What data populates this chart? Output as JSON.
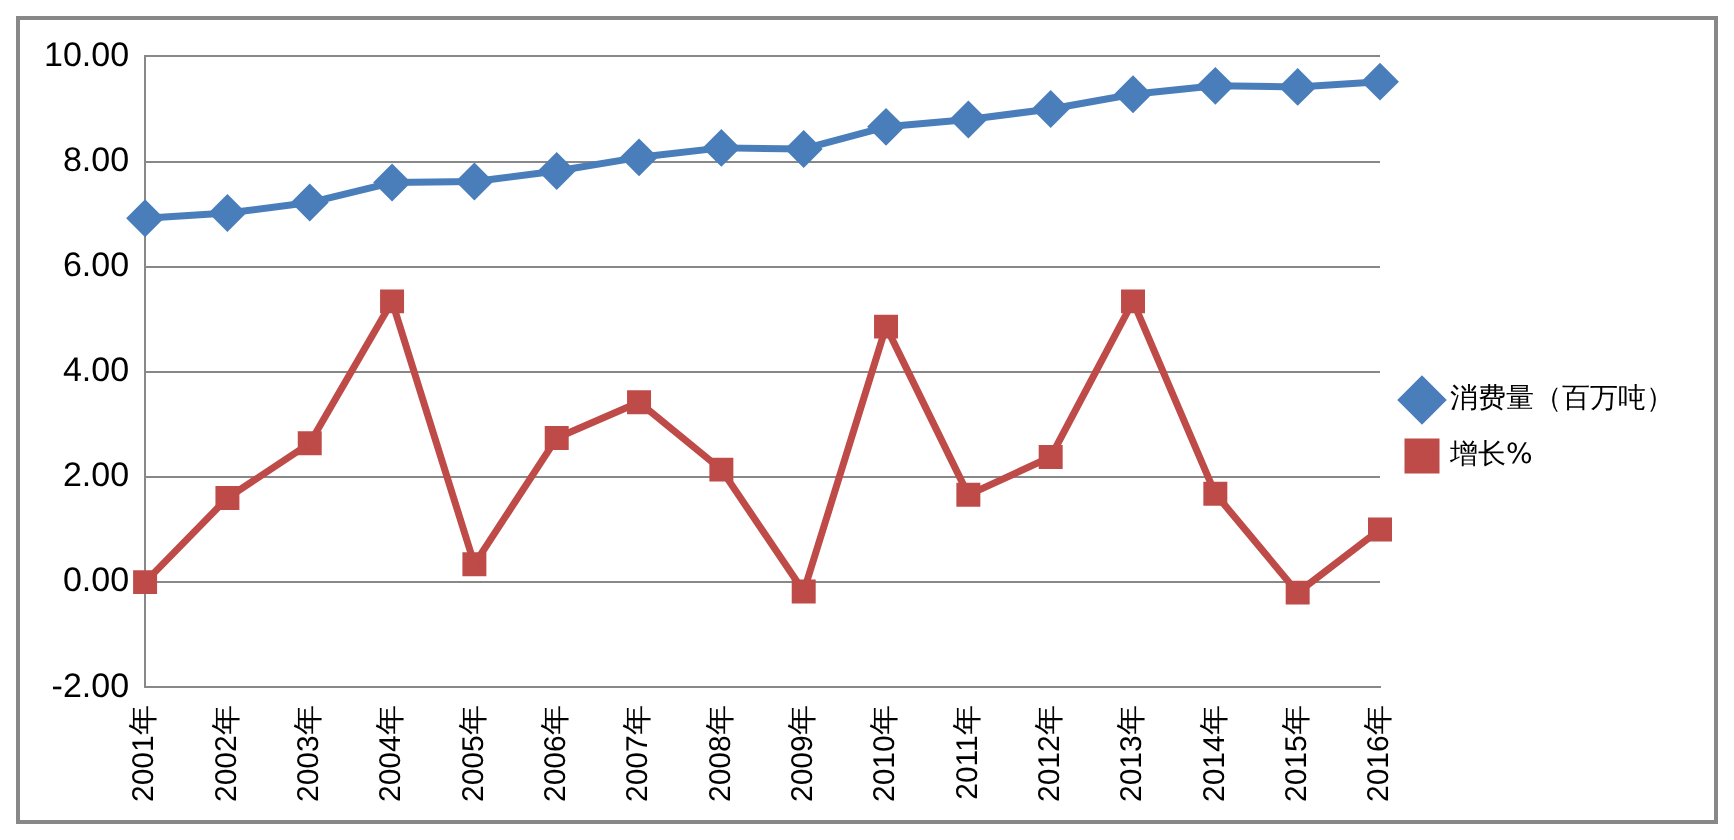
{
  "chart_data": {
    "type": "line",
    "categories": [
      "2001年",
      "2002年",
      "2003年",
      "2004年",
      "2005年",
      "2006年",
      "2007年",
      "2008年",
      "2009年",
      "2010年",
      "2011年",
      "2012年",
      "2013年",
      "2014年",
      "2015年",
      "2016年"
    ],
    "series": [
      {
        "name": "消费量（百万吨）",
        "color": "#4a7ebb",
        "marker": "diamond",
        "values": [
          6.92,
          7.02,
          7.22,
          7.6,
          7.62,
          7.82,
          8.08,
          8.26,
          8.24,
          8.66,
          8.8,
          9.0,
          9.28,
          9.44,
          9.42,
          9.52
        ]
      },
      {
        "name": "增长%",
        "color": "#be4b48",
        "marker": "square",
        "values": [
          0,
          1.6,
          2.64,
          5.34,
          0.34,
          2.74,
          3.42,
          2.14,
          -0.18,
          4.86,
          1.66,
          2.38,
          5.34,
          1.68,
          -0.2,
          1.0
        ]
      }
    ],
    "ylim": [
      -2,
      10
    ],
    "yticks": [
      {
        "value": -2,
        "label": "-2.00"
      },
      {
        "value": 0,
        "label": "0.00"
      },
      {
        "value": 2,
        "label": "2.00"
      },
      {
        "value": 4,
        "label": "4.00"
      },
      {
        "value": 6,
        "label": "6.00"
      },
      {
        "value": 8,
        "label": "8.00"
      },
      {
        "value": 10,
        "label": "10.00"
      }
    ],
    "grid": "y",
    "legend": "right"
  }
}
